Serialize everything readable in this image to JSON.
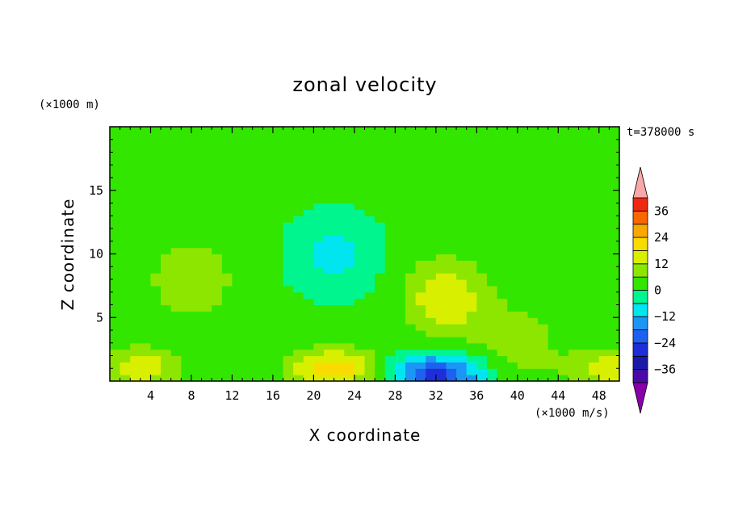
{
  "chart_data": {
    "type": "heatmap",
    "title": "zonal velocity",
    "xlabel": "X coordinate",
    "ylabel": "Z coordinate",
    "x_unit": "(×1000 m/s)",
    "y_unit": "(×1000 m)",
    "time_label": "t=378000 s",
    "xlim": [
      0,
      50
    ],
    "ylim": [
      0,
      20
    ],
    "x_ticks": [
      4,
      8,
      12,
      16,
      20,
      24,
      28,
      32,
      36,
      40,
      44,
      48
    ],
    "y_ticks": [
      5,
      10,
      15
    ],
    "colorbar": {
      "levels": [
        -42,
        -36,
        -30,
        -24,
        -18,
        -12,
        -6,
        0,
        6,
        12,
        18,
        24,
        30,
        36,
        42
      ],
      "labeled_values": [
        36,
        24,
        12,
        0,
        -12,
        -24,
        -36
      ],
      "colors": [
        "#8800aa",
        "#4a0aa8",
        "#1a1aaa",
        "#1f2ed8",
        "#1e60f0",
        "#1c96f5",
        "#00e6f0",
        "#00f58f",
        "#33e600",
        "#8ce600",
        "#d8f000",
        "#f8dc00",
        "#f8a800",
        "#f86800",
        "#f02810",
        "#f8a8a8"
      ]
    },
    "features": [
      {
        "x": 22,
        "z": 1.0,
        "value": 20
      },
      {
        "x": 8,
        "z": 8.0,
        "value": 10
      },
      {
        "x": 33,
        "z": 6.5,
        "value": 16
      },
      {
        "x": 3,
        "z": 1.0,
        "value": 15
      },
      {
        "x": 49,
        "z": 1.0,
        "value": 14
      },
      {
        "x": 32,
        "z": 0.5,
        "value": -28
      },
      {
        "x": 22,
        "z": 10.0,
        "value": -10
      },
      {
        "x": 40,
        "z": 3.0,
        "value": 8
      }
    ]
  }
}
